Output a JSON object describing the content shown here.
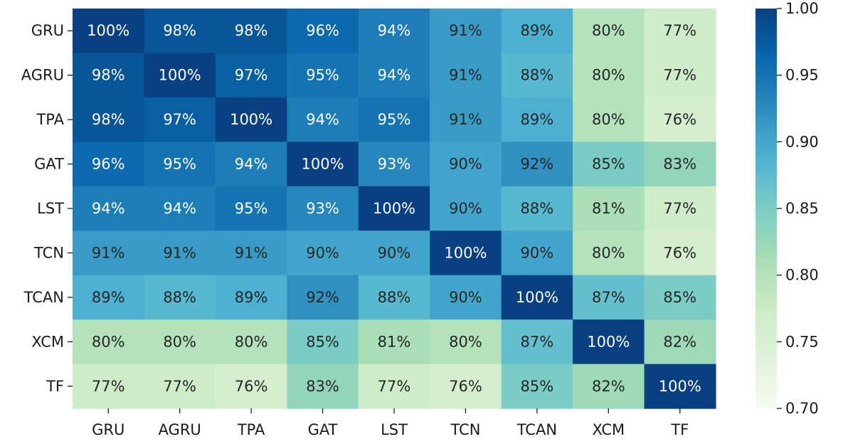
{
  "chart_data": {
    "type": "heatmap",
    "title": "",
    "xlabel": "",
    "ylabel": "",
    "categories_x": [
      "GRU",
      "AGRU",
      "TPA",
      "GAT",
      "LST",
      "TCN",
      "TCAN",
      "XCM",
      "TF"
    ],
    "categories_y": [
      "GRU",
      "AGRU",
      "TPA",
      "GAT",
      "LST",
      "TCN",
      "TCAN",
      "XCM",
      "TF"
    ],
    "values": [
      [
        1.0,
        0.98,
        0.98,
        0.96,
        0.94,
        0.91,
        0.89,
        0.8,
        0.77
      ],
      [
        0.98,
        1.0,
        0.97,
        0.95,
        0.94,
        0.91,
        0.88,
        0.8,
        0.77
      ],
      [
        0.98,
        0.97,
        1.0,
        0.94,
        0.95,
        0.91,
        0.89,
        0.8,
        0.76
      ],
      [
        0.96,
        0.95,
        0.94,
        1.0,
        0.93,
        0.9,
        0.92,
        0.85,
        0.83
      ],
      [
        0.94,
        0.94,
        0.95,
        0.93,
        1.0,
        0.9,
        0.88,
        0.81,
        0.77
      ],
      [
        0.91,
        0.91,
        0.91,
        0.9,
        0.9,
        1.0,
        0.9,
        0.8,
        0.76
      ],
      [
        0.89,
        0.88,
        0.89,
        0.92,
        0.88,
        0.9,
        1.0,
        0.87,
        0.85
      ],
      [
        0.8,
        0.8,
        0.8,
        0.85,
        0.81,
        0.8,
        0.87,
        1.0,
        0.82
      ],
      [
        0.77,
        0.77,
        0.76,
        0.83,
        0.77,
        0.76,
        0.85,
        0.82,
        1.0
      ]
    ],
    "cell_labels": [
      [
        "100%",
        "98%",
        "98%",
        "96%",
        "94%",
        "91%",
        "89%",
        "80%",
        "77%"
      ],
      [
        "98%",
        "100%",
        "97%",
        "95%",
        "94%",
        "91%",
        "88%",
        "80%",
        "77%"
      ],
      [
        "98%",
        "97%",
        "100%",
        "94%",
        "95%",
        "91%",
        "89%",
        "80%",
        "76%"
      ],
      [
        "96%",
        "95%",
        "94%",
        "100%",
        "93%",
        "90%",
        "92%",
        "85%",
        "83%"
      ],
      [
        "94%",
        "94%",
        "95%",
        "93%",
        "100%",
        "90%",
        "88%",
        "81%",
        "77%"
      ],
      [
        "91%",
        "91%",
        "91%",
        "90%",
        "90%",
        "100%",
        "90%",
        "80%",
        "76%"
      ],
      [
        "89%",
        "88%",
        "89%",
        "92%",
        "88%",
        "90%",
        "100%",
        "87%",
        "85%"
      ],
      [
        "80%",
        "80%",
        "80%",
        "85%",
        "81%",
        "80%",
        "87%",
        "100%",
        "82%"
      ],
      [
        "77%",
        "77%",
        "76%",
        "83%",
        "77%",
        "76%",
        "85%",
        "82%",
        "100%"
      ]
    ],
    "vmin": 0.7,
    "vmax": 1.0,
    "colormap": "GnBu",
    "colorbar": {
      "ticks": [
        0.7,
        0.75,
        0.8,
        0.85,
        0.9,
        0.95,
        1.0
      ],
      "tick_labels": [
        "0.70",
        "0.75",
        "0.80",
        "0.85",
        "0.90",
        "0.95",
        "1.00"
      ],
      "placement": "right"
    },
    "grid": false
  },
  "colors": {
    "gnbu_stops": [
      "#f7fcf0",
      "#e0f3db",
      "#ccebc5",
      "#a8ddb5",
      "#7bccc4",
      "#4eb3d3",
      "#2b8cbe",
      "#0868ac",
      "#084081"
    ],
    "text_dark": "#262626",
    "text_light": "#ffffff",
    "axis": "#1a1a1a"
  }
}
